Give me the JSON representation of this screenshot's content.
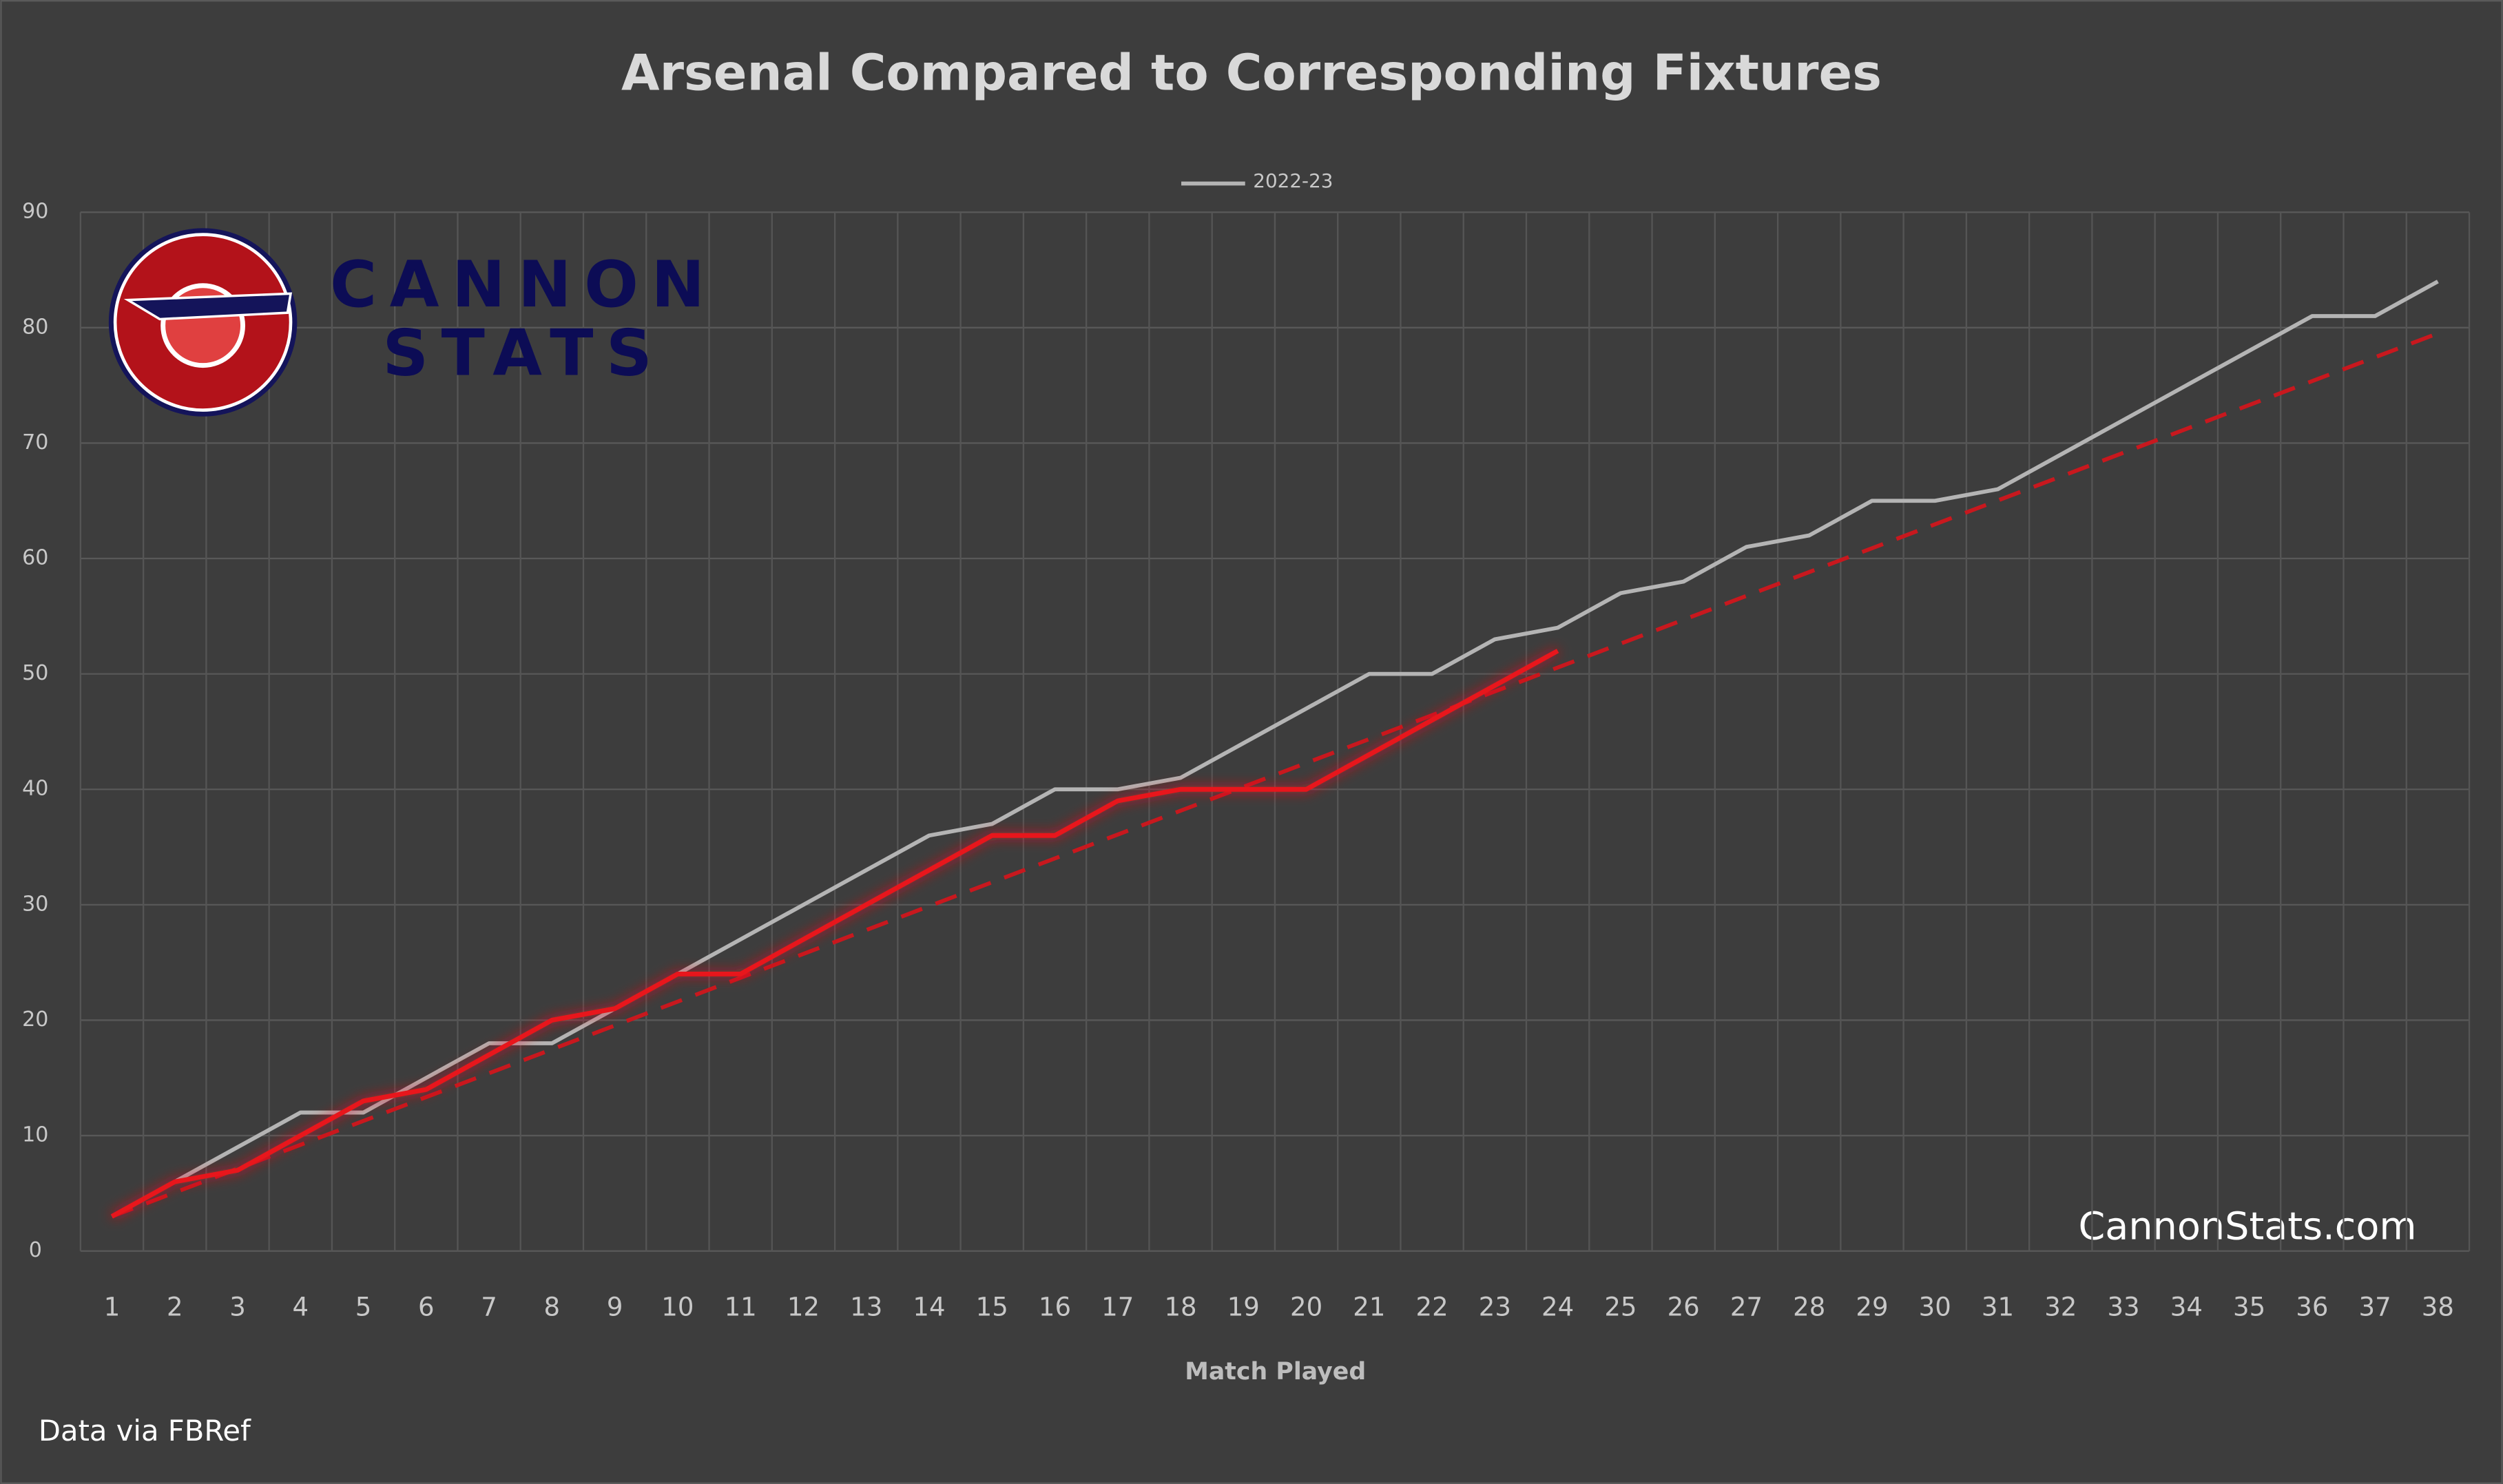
{
  "chart_data": {
    "type": "line",
    "title": "Arsenal Compared to Corresponding Fixtures",
    "x_label": "Match Played",
    "categories": [
      "1",
      "2",
      "3",
      "4",
      "5",
      "6",
      "7",
      "8",
      "9",
      "10",
      "11",
      "12",
      "13",
      "14",
      "15",
      "16",
      "17",
      "18",
      "19",
      "20",
      "21",
      "22",
      "23",
      "24",
      "25",
      "26",
      "27",
      "28",
      "29",
      "30",
      "31",
      "32",
      "33",
      "34",
      "35",
      "36",
      "37",
      "38"
    ],
    "series": [
      {
        "name": "2022-23",
        "color": "#b4b4b4",
        "values": [
          3,
          6,
          9,
          12,
          12,
          15,
          18,
          18,
          21,
          24,
          27,
          30,
          33,
          36,
          37,
          40,
          40,
          41,
          44,
          47,
          50,
          50,
          53,
          54,
          57,
          58,
          61,
          62,
          65,
          65,
          66,
          69,
          72,
          75,
          78,
          81,
          81,
          84
        ]
      },
      {
        "color": "#e8121a",
        "values": [
          3,
          6,
          7,
          10,
          13,
          14,
          17,
          20,
          21,
          24,
          24,
          27,
          30,
          33,
          36,
          36,
          39,
          40,
          40,
          40,
          43,
          46,
          49,
          52,
          null,
          null,
          null,
          null,
          null,
          null,
          null,
          null,
          null,
          null,
          null,
          null,
          null,
          null
        ]
      }
    ],
    "trendline": {
      "color": "#c8181e",
      "dashed": true,
      "x": [
        1,
        38
      ],
      "values": [
        3,
        79.5
      ]
    },
    "ylim": [
      0,
      90
    ],
    "yticks": [
      0,
      10,
      20,
      30,
      40,
      50,
      60,
      70,
      80,
      90
    ],
    "grid": true,
    "legend": "top",
    "logo": [
      "CANNON",
      "STATS"
    ],
    "watermark": "CannonStats.com",
    "source": "Data via FBRef"
  }
}
